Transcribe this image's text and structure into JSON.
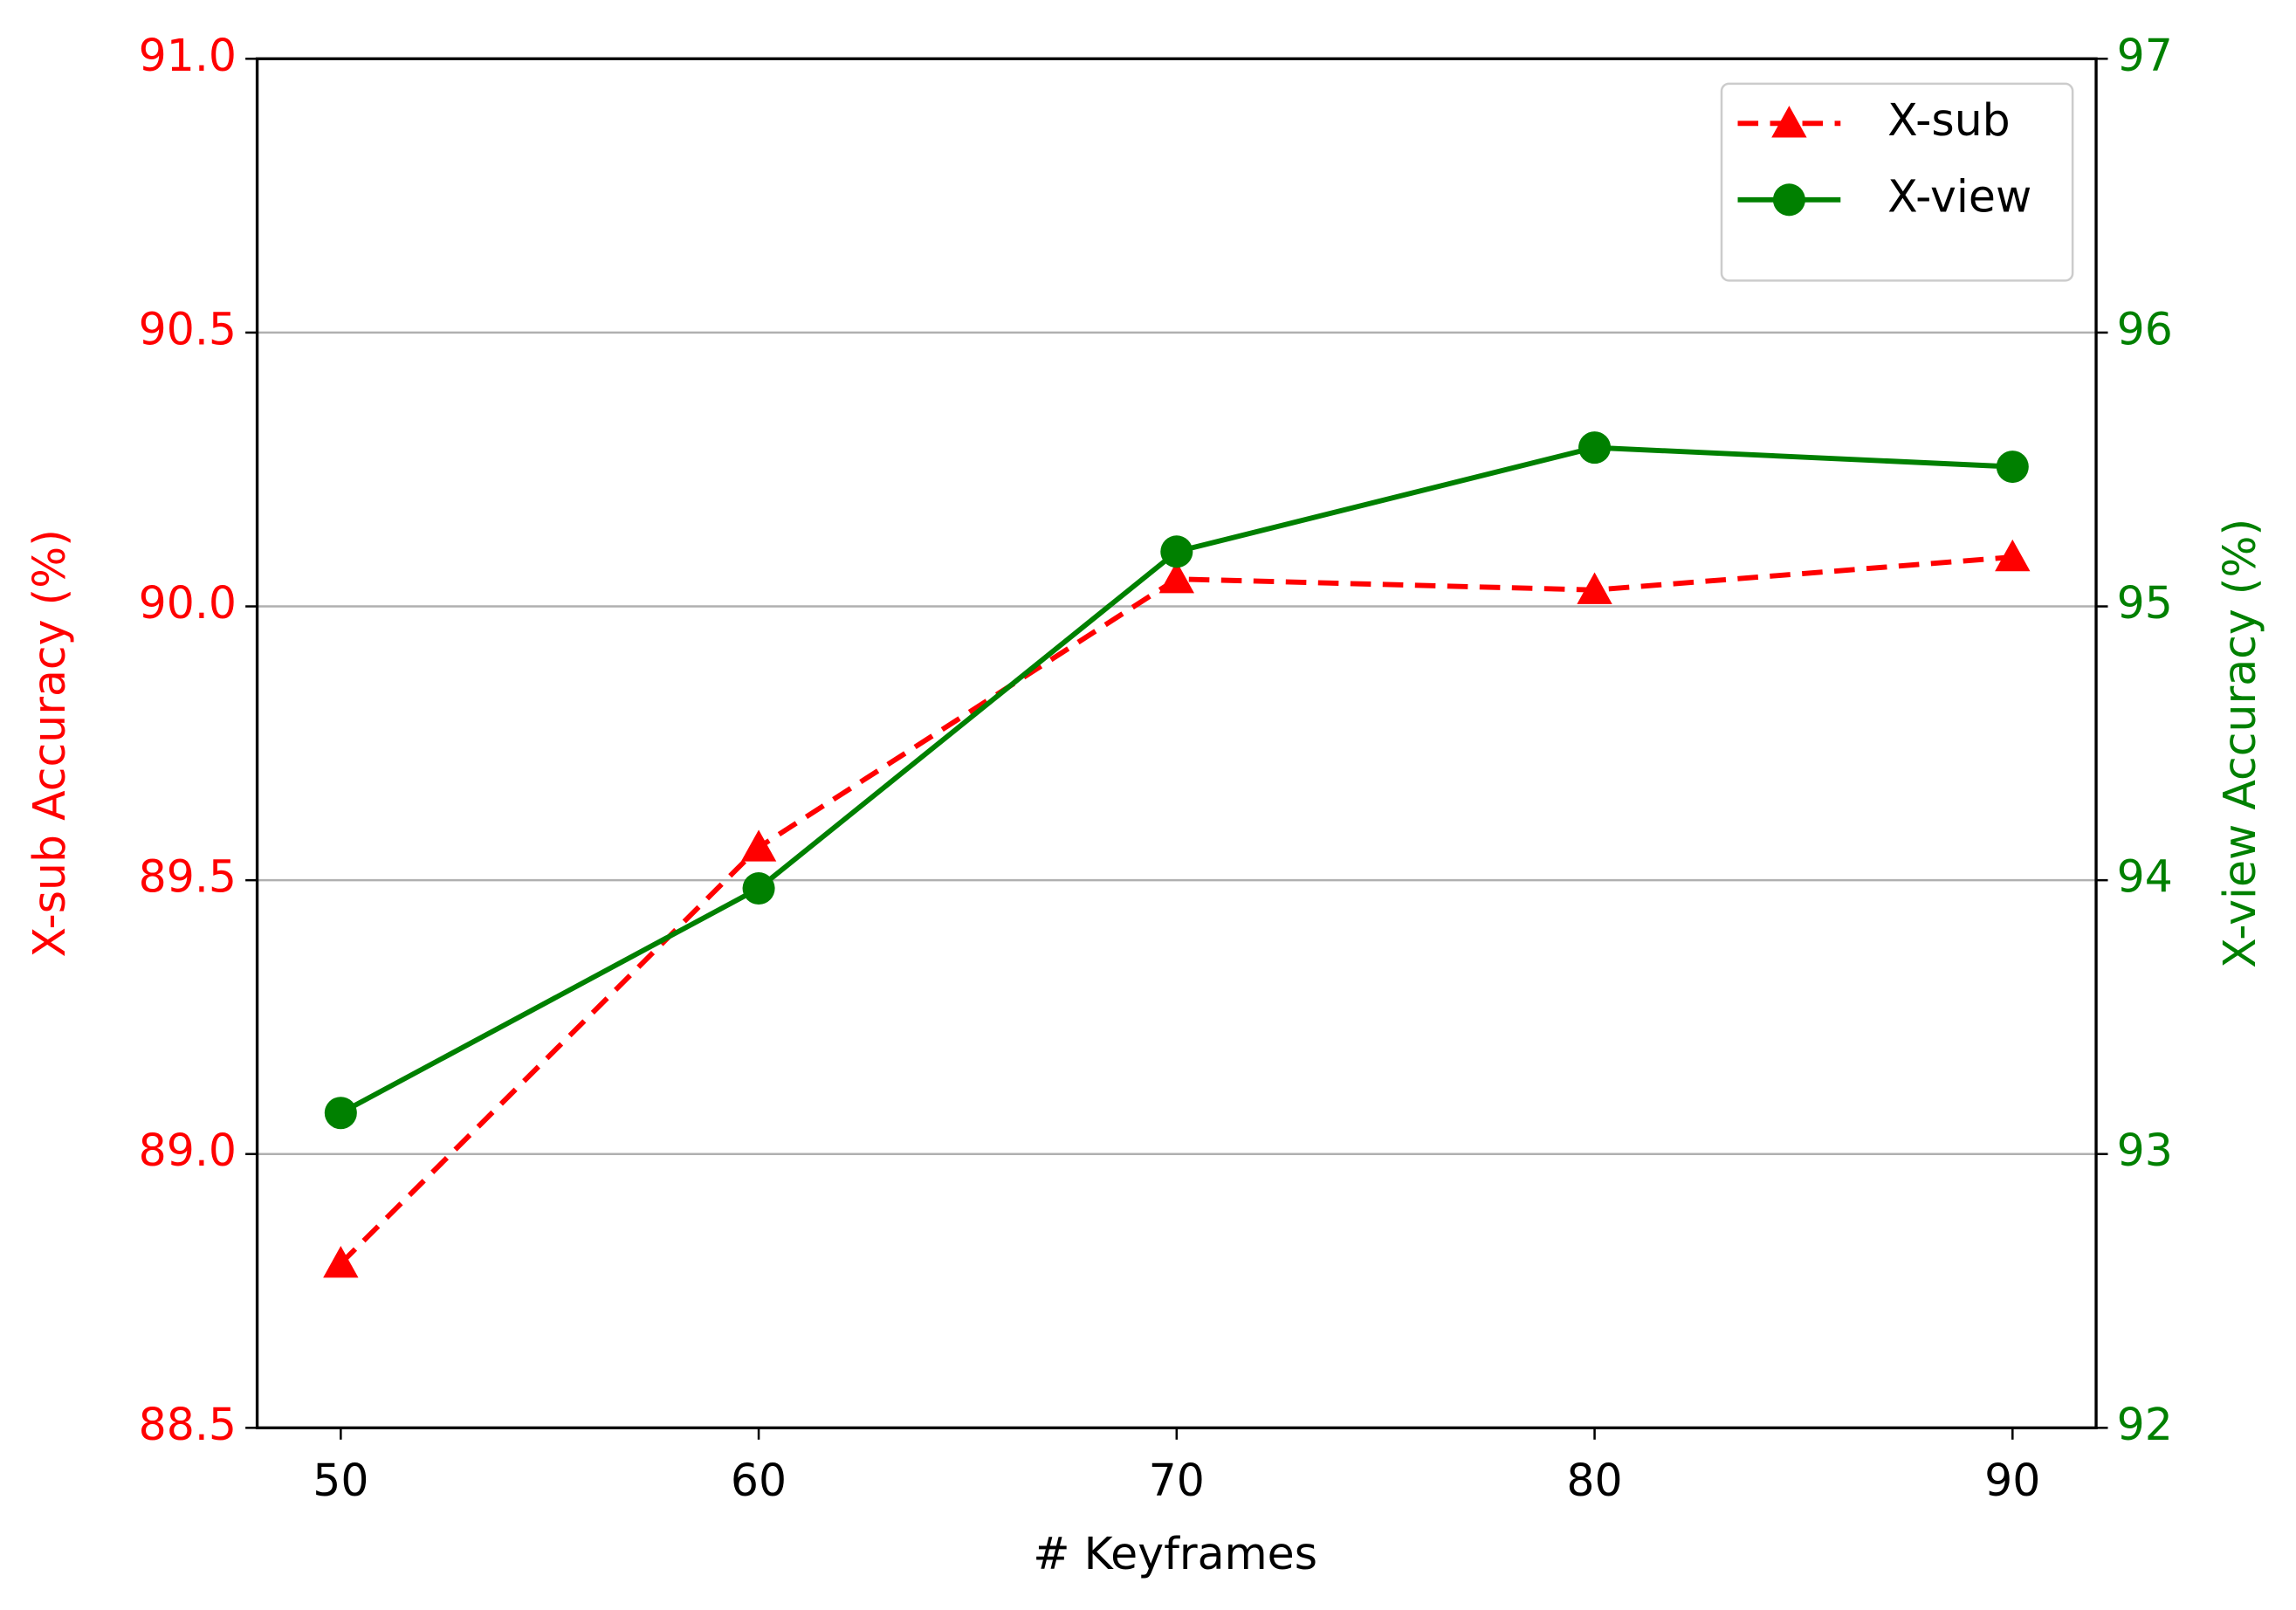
{
  "chart_data": {
    "type": "line",
    "x_label": "# Keyframes",
    "y_label": "X-sub Accuracy (%)",
    "y2_label": "X-view Accuracy (%)",
    "x": [
      50,
      60,
      70,
      80,
      90
    ],
    "xlim": [
      48,
      92
    ],
    "xticks": [
      50,
      60,
      70,
      80,
      90
    ],
    "ylim": [
      88.5,
      91.0
    ],
    "yticks": [
      88.5,
      {
        "value": 89.0,
        "label": "89.0"
      },
      89.5,
      {
        "value": 90.0,
        "label": "90.0"
      },
      90.5,
      {
        "value": 91.0,
        "label": "91.0"
      }
    ],
    "y2lim": [
      92,
      97
    ],
    "y2ticks": [
      92,
      93,
      94,
      95,
      96,
      97
    ],
    "y_color": "#ff0000",
    "y2_color": "#008000",
    "grid": true,
    "legend": "upper right",
    "series": [
      {
        "name": "X-sub",
        "color": "#ff0000",
        "axis": "y",
        "linestyle": "dashed",
        "marker": "triangle",
        "values": [
          88.8,
          89.56,
          90.05,
          90.03,
          90.09
        ]
      },
      {
        "name": "X-view",
        "color": "#008000",
        "axis": "y2",
        "linestyle": "solid",
        "marker": "circle",
        "values": [
          93.15,
          93.97,
          95.2,
          95.58,
          95.51
        ]
      }
    ]
  }
}
